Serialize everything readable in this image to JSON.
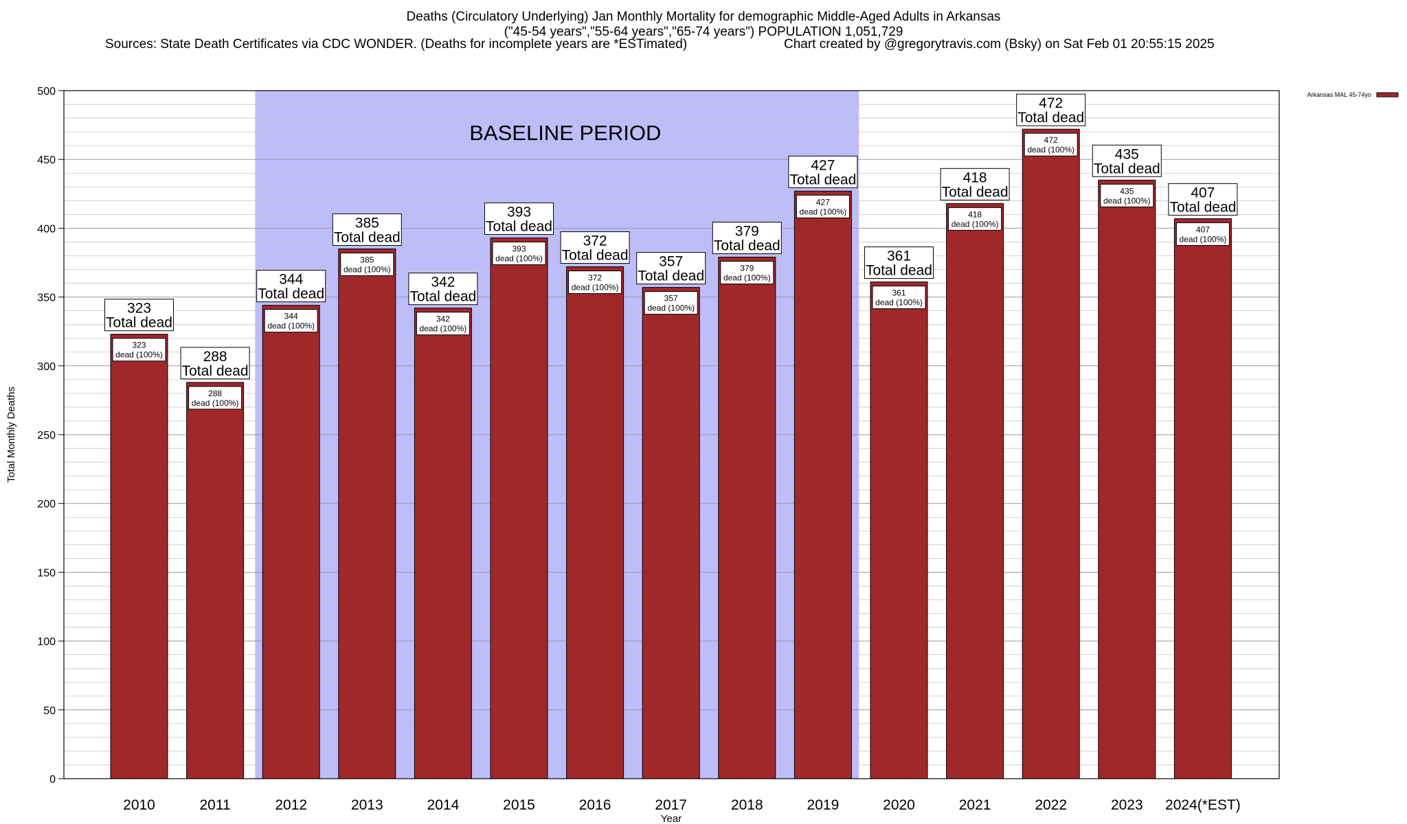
{
  "chart_title": {
    "line1": "Deaths (Circulatory Underlying) Jan Monthly Mortality for demographic Middle-Aged Adults in Arkansas",
    "line2": "(\"45-54 years\",\"55-64 years\",\"65-74 years\") POPULATION 1,051,729",
    "sources": "Sources: State Death Certificates via CDC WONDER. (Deaths for incomplete years are *ESTimated)",
    "credit": "Chart created by @gregorytravis.com (Bsky) on Sat Feb 01 20:55:15 2025"
  },
  "chart_data": {
    "type": "bar",
    "title": "Deaths (Circulatory Underlying) Jan Monthly Mortality for demographic Middle-Aged Adults in Arkansas",
    "xlabel": "Year",
    "ylabel": "Total Monthly Deaths",
    "ylim": [
      0,
      500
    ],
    "yticks": [
      0,
      50,
      100,
      150,
      200,
      250,
      300,
      350,
      400,
      450,
      500
    ],
    "grid": true,
    "legend_position": "top-right",
    "categories": [
      "2010",
      "2011",
      "2012",
      "2013",
      "2014",
      "2015",
      "2016",
      "2017",
      "2018",
      "2019",
      "2020",
      "2021",
      "2022",
      "2023",
      "2024(*EST)"
    ],
    "series": [
      {
        "name": "Arkansas MAL 45-74yo",
        "color": "#a0282b",
        "values": [
          323,
          288,
          344,
          385,
          342,
          393,
          372,
          357,
          379,
          427,
          361,
          418,
          472,
          435,
          407
        ]
      }
    ],
    "total_label": "Total dead",
    "inner_label_suffix": "dead (100%)",
    "baseline_region": {
      "label": "BASELINE PERIOD",
      "from_category": "2012",
      "to_category": "2019",
      "color": "#bdbdfa"
    }
  }
}
